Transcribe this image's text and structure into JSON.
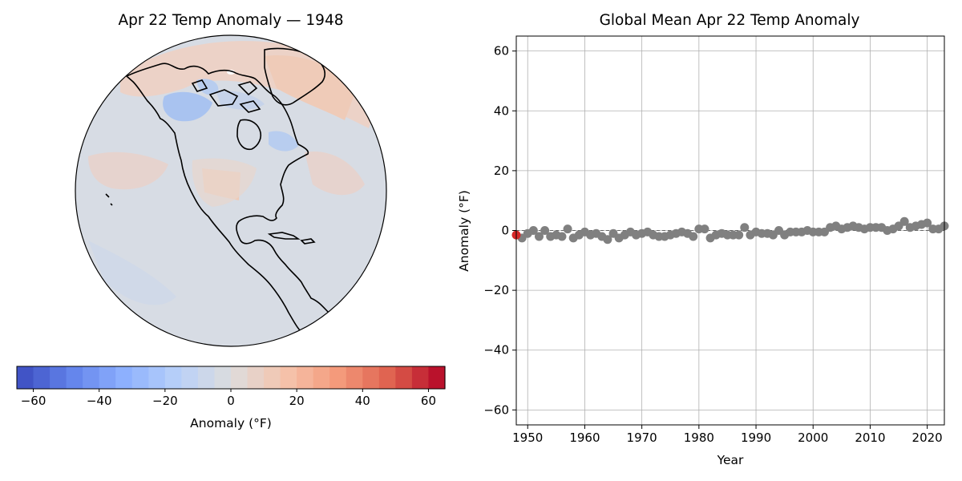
{
  "map_panel": {
    "title": "Apr 22 Temp Anomaly — 1948",
    "colorbar": {
      "label": "Anomaly (°F)",
      "ticks": [
        "−60",
        "−40",
        "−20",
        "0",
        "20",
        "40",
        "60"
      ],
      "tick_values": [
        -60,
        -40,
        -20,
        0,
        20,
        40,
        60
      ],
      "range": [
        -65,
        65
      ],
      "colormap": "coolwarm",
      "levels": 26
    },
    "colors": {
      "neutral": "#d7dce4",
      "warm": "#efcbb8",
      "cool": "#a9c3f0",
      "coastline": "#000000"
    }
  },
  "chart_data": {
    "type": "scatter",
    "title": "Global Mean Apr 22 Temp Anomaly",
    "xlabel": "Year",
    "ylabel": "Anomaly (°F)",
    "xlim": [
      1948,
      2023
    ],
    "ylim": [
      -65,
      65
    ],
    "xticks": [
      1950,
      1960,
      1970,
      1980,
      1990,
      2000,
      2010,
      2020
    ],
    "yticks": [
      -60,
      -40,
      -20,
      0,
      20,
      40,
      60
    ],
    "ytick_labels": [
      "−60",
      "−40",
      "−20",
      "0",
      "20",
      "40",
      "60"
    ],
    "grid": true,
    "zero_line": "dashed",
    "point_color": "#808080",
    "highlight_color": "#d62728",
    "highlight": {
      "x": 1948,
      "y": -1.5
    },
    "series": [
      {
        "x": [
          1949,
          1950,
          1951,
          1952,
          1953,
          1954,
          1955,
          1956,
          1957,
          1958,
          1959,
          1960,
          1961,
          1962,
          1963,
          1964,
          1965,
          1966,
          1967,
          1968,
          1969,
          1970,
          1971,
          1972,
          1973,
          1974,
          1975,
          1976,
          1977,
          1978,
          1979,
          1980,
          1981,
          1982,
          1983,
          1984,
          1985,
          1986,
          1987,
          1988,
          1989,
          1990,
          1991,
          1992,
          1993,
          1994,
          1995,
          1996,
          1997,
          1998,
          1999,
          2000,
          2001,
          2002,
          2003,
          2004,
          2005,
          2006,
          2007,
          2008,
          2009,
          2010,
          2011,
          2012,
          2013,
          2014,
          2015,
          2016,
          2017,
          2018,
          2019,
          2020,
          2021,
          2022,
          2023
        ],
        "y": [
          -2.5,
          -1,
          0,
          -2,
          0,
          -2,
          -1.5,
          -2,
          0.5,
          -2.5,
          -1.5,
          -0.5,
          -1.5,
          -1,
          -2,
          -3,
          -1,
          -2.5,
          -1.5,
          -0.5,
          -1.5,
          -1,
          -0.5,
          -1.5,
          -2,
          -2,
          -1.5,
          -1,
          -0.5,
          -1,
          -2,
          0.5,
          0.5,
          -2.5,
          -1.5,
          -1,
          -1.5,
          -1.5,
          -1.5,
          1,
          -1.5,
          -0.5,
          -1,
          -1,
          -1.5,
          0,
          -1.5,
          -0.5,
          -0.5,
          -0.5,
          0,
          -0.5,
          -0.5,
          -0.5,
          1,
          1.5,
          0.5,
          1,
          1.5,
          1,
          0.5,
          1,
          1,
          1,
          0,
          0.5,
          1.5,
          3,
          1,
          1.5,
          2,
          2.5,
          0.5,
          0.5,
          1.5
        ]
      }
    ]
  }
}
